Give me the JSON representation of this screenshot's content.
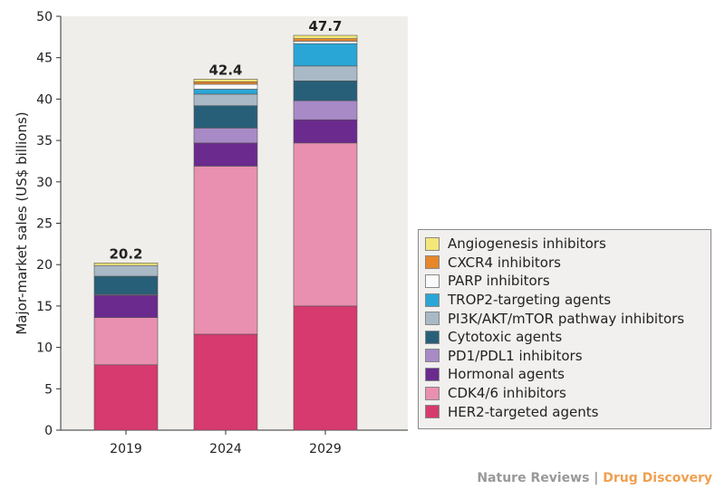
{
  "chart_data": {
    "type": "bar",
    "stacked": true,
    "categories": [
      "2019",
      "2024",
      "2029"
    ],
    "totals": [
      "20.2",
      "42.4",
      "47.7"
    ],
    "ylabel": "Major-market sales (US$ billions)",
    "ylim": [
      0,
      50
    ],
    "yticks": [
      0,
      5,
      10,
      15,
      20,
      25,
      30,
      35,
      40,
      45,
      50
    ],
    "legend_position": "right",
    "series": [
      {
        "name": "HER2-targeted agents",
        "color": "#d63a6e",
        "values": [
          7.9,
          11.6,
          15.0
        ]
      },
      {
        "name": "CDK4/6 inhibitors",
        "color": "#e98fb0",
        "values": [
          5.7,
          20.3,
          19.7
        ]
      },
      {
        "name": "Hormonal agents",
        "color": "#6a2a8e",
        "values": [
          2.7,
          2.8,
          2.8
        ]
      },
      {
        "name": "PD1/PDL1 inhibitors",
        "color": "#a88ac6",
        "values": [
          0.1,
          1.8,
          2.3
        ]
      },
      {
        "name": "Cytotoxic agents",
        "color": "#285f78",
        "values": [
          2.2,
          2.7,
          2.4
        ]
      },
      {
        "name": "PI3K/AKT/mTOR pathway inhibitors",
        "color": "#a9b9c6",
        "values": [
          1.3,
          1.4,
          1.8
        ]
      },
      {
        "name": "TROP2-targeting agents",
        "color": "#2aa6d6",
        "values": [
          0,
          0.6,
          2.7
        ]
      },
      {
        "name": "PARP inhibitors",
        "color": "#f8fafc",
        "values": [
          0,
          0.6,
          0.3
        ]
      },
      {
        "name": "CXCR4 inhibitors",
        "color": "#e8862a",
        "values": [
          0,
          0.3,
          0.3
        ]
      },
      {
        "name": "Angiogenesis inhibitors",
        "color": "#f4e77a",
        "values": [
          0.3,
          0.3,
          0.4
        ]
      }
    ]
  },
  "credit": {
    "journal": "Nature Reviews",
    "separator": " | ",
    "section": "Drug Discovery"
  }
}
